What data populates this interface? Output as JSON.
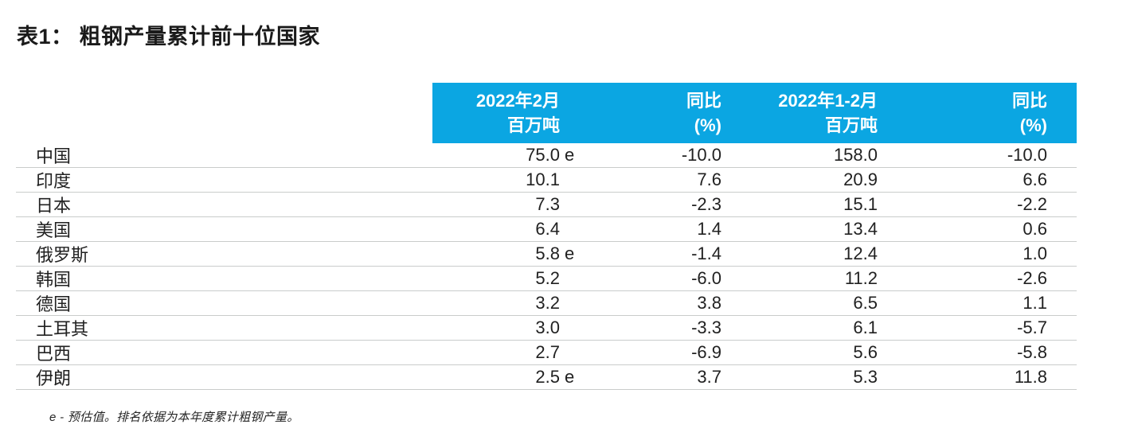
{
  "page": {
    "title": "表1： 粗钢产量累计前十位国家",
    "footnote": "e - 预估值。排名依据为本年度累计粗钢产量。"
  },
  "colors": {
    "header_bg": "#0ba6e2",
    "header_text": "#ffffff",
    "row_divider": "#c9cccb",
    "body_text": "#212121"
  },
  "table": {
    "columns": [
      {
        "id": "country",
        "label_line1": "",
        "label_line2": ""
      },
      {
        "id": "feb",
        "label_line1": "2022年2月",
        "label_line2": "百万吨"
      },
      {
        "id": "yoy_feb",
        "label_line1": "同比",
        "label_line2": "(%)"
      },
      {
        "id": "jan_feb",
        "label_line1": "2022年1-2月",
        "label_line2": "百万吨"
      },
      {
        "id": "yoy_jan_feb",
        "label_line1": "同比",
        "label_line2": "(%)"
      }
    ],
    "rows": [
      {
        "country": "中国",
        "feb": "75.0",
        "feb_estimate": "e",
        "yoy_feb": "-10.0",
        "jan_feb": "158.0",
        "yoy_jan_feb": "-10.0"
      },
      {
        "country": "印度",
        "feb": "10.1",
        "feb_estimate": "",
        "yoy_feb": "7.6",
        "jan_feb": "20.9",
        "yoy_jan_feb": "6.6"
      },
      {
        "country": "日本",
        "feb": "7.3",
        "feb_estimate": "",
        "yoy_feb": "-2.3",
        "jan_feb": "15.1",
        "yoy_jan_feb": "-2.2"
      },
      {
        "country": "美国",
        "feb": "6.4",
        "feb_estimate": "",
        "yoy_feb": "1.4",
        "jan_feb": "13.4",
        "yoy_jan_feb": "0.6"
      },
      {
        "country": "俄罗斯",
        "feb": "5.8",
        "feb_estimate": "e",
        "yoy_feb": "-1.4",
        "jan_feb": "12.4",
        "yoy_jan_feb": "1.0"
      },
      {
        "country": "韩国",
        "feb": "5.2",
        "feb_estimate": "",
        "yoy_feb": "-6.0",
        "jan_feb": "11.2",
        "yoy_jan_feb": "-2.6"
      },
      {
        "country": "德国",
        "feb": "3.2",
        "feb_estimate": "",
        "yoy_feb": "3.8",
        "jan_feb": "6.5",
        "yoy_jan_feb": "1.1"
      },
      {
        "country": "土耳其",
        "feb": "3.0",
        "feb_estimate": "",
        "yoy_feb": "-3.3",
        "jan_feb": "6.1",
        "yoy_jan_feb": "-5.7"
      },
      {
        "country": "巴西",
        "feb": "2.7",
        "feb_estimate": "",
        "yoy_feb": "-6.9",
        "jan_feb": "5.6",
        "yoy_jan_feb": "-5.8"
      },
      {
        "country": "伊朗",
        "feb": "2.5",
        "feb_estimate": "e",
        "yoy_feb": "3.7",
        "jan_feb": "5.3",
        "yoy_jan_feb": "11.8"
      }
    ]
  }
}
